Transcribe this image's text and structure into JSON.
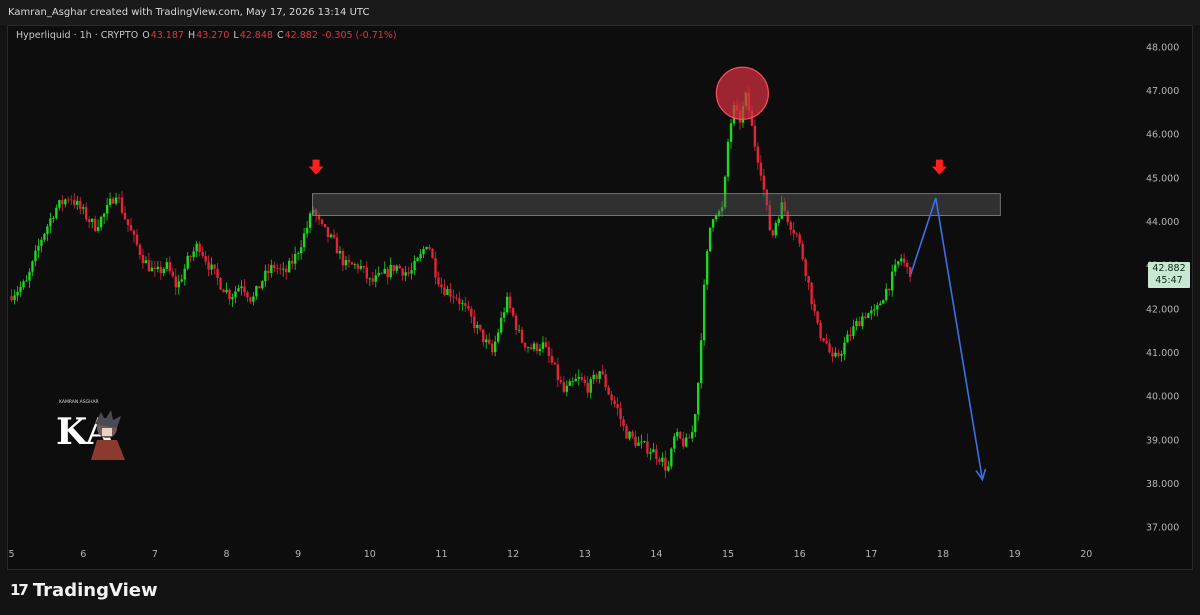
{
  "header": {
    "credit": "Kamran_Asghar created with TradingView.com, May 17, 2026 13:14 UTC"
  },
  "legend": {
    "symbol": "Hyperliquid · 1h · CRYPTO",
    "open_label": "O",
    "open": "43.187",
    "high_label": "H",
    "high": "43.270",
    "low_label": "L",
    "low": "42.848",
    "close_label": "C",
    "close": "42.882",
    "change": "-0.305 (-0.71%)"
  },
  "price_tag": {
    "price": "42.882",
    "countdown": "45:47"
  },
  "watermark": {
    "text": "KAMRAN ASGHAR",
    "initials": "KA"
  },
  "footer": {
    "logo_text": "TradingView"
  },
  "colors": {
    "up": "#1fd71f",
    "down": "#e0243a",
    "background": "#0d0d0d",
    "projection": "#3d6fe6",
    "zone": "#5a5a5a",
    "marker": "#ff1f1f"
  },
  "icons": [
    "down-arrow-marker-icon",
    "tradingview-logo-icon"
  ],
  "chart_data": {
    "type": "candlestick",
    "timeframe": "1h",
    "x_ticks": [
      "5",
      "6",
      "7",
      "8",
      "9",
      "10",
      "11",
      "12",
      "13",
      "14",
      "15",
      "16",
      "17",
      "18",
      "19",
      "20"
    ],
    "y_ticks": [
      "48.000",
      "47.000",
      "46.000",
      "45.000",
      "44.000",
      "43.000",
      "42.000",
      "41.000",
      "40.000",
      "39.000",
      "38.000",
      "37.000"
    ],
    "ylim": [
      36.6,
      48.4
    ],
    "xlim": [
      4.95,
      20.75
    ],
    "price_path": [
      [
        5.0,
        42.3
      ],
      [
        5.25,
        42.6
      ],
      [
        5.45,
        43.6
      ],
      [
        5.65,
        44.3
      ],
      [
        5.85,
        44.6
      ],
      [
        6.0,
        44.3
      ],
      [
        6.2,
        43.9
      ],
      [
        6.35,
        44.2
      ],
      [
        6.5,
        44.7
      ],
      [
        6.6,
        44.2
      ],
      [
        6.75,
        43.6
      ],
      [
        6.9,
        43.1
      ],
      [
        7.05,
        42.8
      ],
      [
        7.2,
        43.0
      ],
      [
        7.35,
        42.5
      ],
      [
        7.5,
        43.1
      ],
      [
        7.65,
        43.5
      ],
      [
        7.8,
        43.0
      ],
      [
        7.95,
        42.6
      ],
      [
        8.1,
        42.3
      ],
      [
        8.25,
        42.6
      ],
      [
        8.4,
        42.2
      ],
      [
        8.55,
        42.7
      ],
      [
        8.7,
        43.0
      ],
      [
        8.85,
        42.8
      ],
      [
        9.0,
        43.2
      ],
      [
        9.15,
        43.8
      ],
      [
        9.25,
        44.3
      ],
      [
        9.35,
        43.9
      ],
      [
        9.55,
        43.5
      ],
      [
        9.7,
        43.0
      ],
      [
        9.9,
        43.0
      ],
      [
        10.05,
        42.6
      ],
      [
        10.25,
        42.8
      ],
      [
        10.4,
        43.0
      ],
      [
        10.6,
        42.8
      ],
      [
        10.75,
        43.2
      ],
      [
        10.85,
        43.6
      ],
      [
        10.95,
        42.9
      ],
      [
        11.05,
        42.5
      ],
      [
        11.25,
        42.3
      ],
      [
        11.45,
        41.8
      ],
      [
        11.6,
        41.4
      ],
      [
        11.75,
        41.0
      ],
      [
        11.85,
        41.6
      ],
      [
        11.95,
        42.2
      ],
      [
        12.05,
        41.8
      ],
      [
        12.15,
        41.3
      ],
      [
        12.3,
        41.1
      ],
      [
        12.45,
        41.2
      ],
      [
        12.6,
        40.7
      ],
      [
        12.75,
        40.1
      ],
      [
        12.95,
        40.4
      ],
      [
        13.1,
        40.2
      ],
      [
        13.25,
        40.6
      ],
      [
        13.4,
        40.0
      ],
      [
        13.5,
        39.7
      ],
      [
        13.6,
        39.2
      ],
      [
        13.8,
        38.9
      ],
      [
        13.95,
        38.8
      ],
      [
        14.1,
        38.6
      ],
      [
        14.2,
        38.3
      ],
      [
        14.3,
        39.1
      ],
      [
        14.45,
        38.9
      ],
      [
        14.55,
        39.2
      ],
      [
        14.62,
        40.2
      ],
      [
        14.7,
        42.3
      ],
      [
        14.78,
        43.8
      ],
      [
        14.85,
        44.3
      ],
      [
        14.92,
        44.2
      ],
      [
        14.97,
        44.3
      ],
      [
        15.05,
        46.0
      ],
      [
        15.12,
        46.6
      ],
      [
        15.2,
        46.3
      ],
      [
        15.3,
        46.9
      ],
      [
        15.4,
        45.9
      ],
      [
        15.5,
        45.2
      ],
      [
        15.58,
        44.3
      ],
      [
        15.65,
        43.6
      ],
      [
        15.72,
        44.1
      ],
      [
        15.8,
        44.4
      ],
      [
        15.9,
        44.0
      ],
      [
        16.0,
        43.7
      ],
      [
        16.1,
        43.1
      ],
      [
        16.2,
        42.3
      ],
      [
        16.3,
        41.5
      ],
      [
        16.4,
        41.3
      ],
      [
        16.5,
        40.8
      ],
      [
        16.6,
        41.0
      ],
      [
        16.7,
        41.3
      ],
      [
        16.85,
        41.7
      ],
      [
        16.95,
        41.9
      ],
      [
        17.1,
        41.9
      ],
      [
        17.2,
        42.3
      ],
      [
        17.3,
        42.6
      ],
      [
        17.45,
        43.2
      ],
      [
        17.55,
        42.88
      ]
    ],
    "annotations": {
      "resistance_zone": {
        "y_low": 44.15,
        "y_high": 44.65,
        "x_start": 9.2,
        "x_end": 18.8
      },
      "down_markers": [
        {
          "x": 9.25,
          "y": 45.2
        },
        {
          "x": 17.95,
          "y": 45.2
        }
      ],
      "top_circle": {
        "x": 15.2,
        "y": 46.95
      },
      "projection_path": [
        [
          17.55,
          42.8
        ],
        [
          17.9,
          44.55
        ],
        [
          18.55,
          38.1
        ]
      ]
    }
  }
}
